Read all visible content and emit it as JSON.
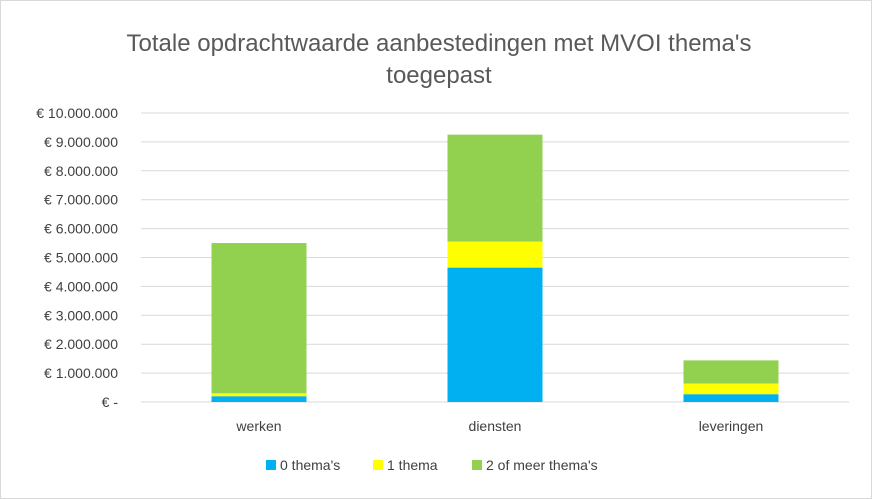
{
  "chart_data": {
    "type": "bar",
    "stacked": true,
    "title_lines": [
      "Totale opdrachtwaarde aanbestedingen met MVOI thema's",
      "toegepast"
    ],
    "categories": [
      "werken",
      "diensten",
      "leveringen"
    ],
    "series": [
      {
        "name": "0 thema's",
        "color": "#00B0F0",
        "values": [
          200000,
          4650000,
          270000
        ]
      },
      {
        "name": "1 thema",
        "color": "#FFFF00",
        "values": [
          100000,
          900000,
          370000
        ]
      },
      {
        "name": "2 of meer thema's",
        "color": "#92D050",
        "values": [
          5200000,
          3700000,
          800000
        ]
      }
    ],
    "ylim": [
      0,
      10000000
    ],
    "y_ticks": [
      0,
      1000000,
      2000000,
      3000000,
      4000000,
      5000000,
      6000000,
      7000000,
      8000000,
      9000000,
      10000000
    ],
    "y_tick_labels": [
      "€ -",
      "€ 1.000.000",
      "€ 2.000.000",
      "€ 3.000.000",
      "€ 4.000.000",
      "€ 5.000.000",
      "€ 6.000.000",
      "€ 7.000.000",
      "€ 8.000.000",
      "€ 9.000.000",
      "€ 10.000.000"
    ],
    "grid": true,
    "legend_position": "bottom",
    "gridline_color": "#d9d9d9"
  }
}
